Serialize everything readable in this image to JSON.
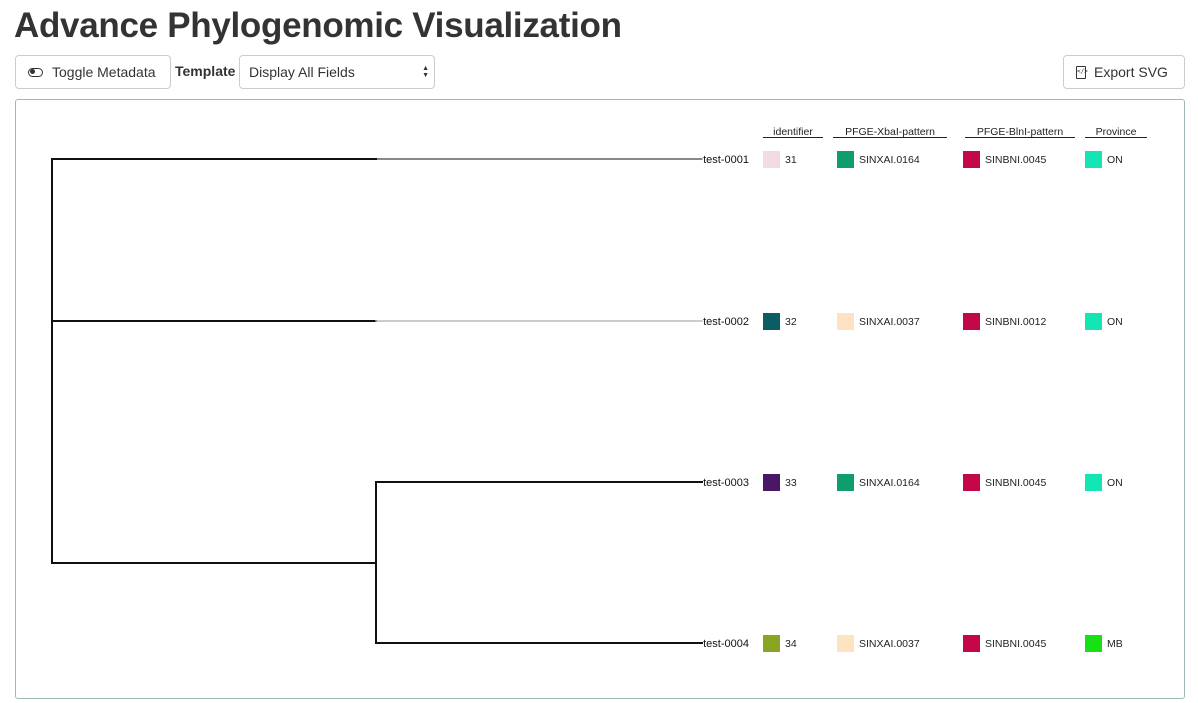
{
  "page": {
    "title": "Advance Phylogenomic Visualization"
  },
  "toolbar": {
    "toggle_label": "Toggle Metadata",
    "toggle_icon": "toggle-icon",
    "template_label": "Template",
    "template_selected": "Display All Fields",
    "export_label": "Export SVG",
    "export_icon": "file-code-icon"
  },
  "metadata": {
    "columns": [
      "identifier",
      "PFGE-XbaI-pattern",
      "PFGE-BlnI-pattern",
      "Province"
    ],
    "rows": [
      {
        "leaf": "test-0001",
        "cells": [
          {
            "text": "31",
            "color": "#f2dbe3"
          },
          {
            "text": "SINXAI.0164",
            "color": "#0f9d70"
          },
          {
            "text": "SINBNI.0045",
            "color": "#c4064a"
          },
          {
            "text": "ON",
            "color": "#14e5b4"
          }
        ]
      },
      {
        "leaf": "test-0002",
        "cells": [
          {
            "text": "32",
            "color": "#0a5d64"
          },
          {
            "text": "SINXAI.0037",
            "color": "#fde3c4"
          },
          {
            "text": "SINBNI.0012",
            "color": "#c4064a"
          },
          {
            "text": "ON",
            "color": "#14e5b4"
          }
        ]
      },
      {
        "leaf": "test-0003",
        "cells": [
          {
            "text": "33",
            "color": "#4a1766"
          },
          {
            "text": "SINXAI.0164",
            "color": "#0f9d70"
          },
          {
            "text": "SINBNI.0045",
            "color": "#c4064a"
          },
          {
            "text": "ON",
            "color": "#14e5b4"
          }
        ]
      },
      {
        "leaf": "test-0004",
        "cells": [
          {
            "text": "34",
            "color": "#8aa522"
          },
          {
            "text": "SINXAI.0037",
            "color": "#fde3c4"
          },
          {
            "text": "SINBNI.0045",
            "color": "#c4064a"
          },
          {
            "text": "MB",
            "color": "#17e014"
          }
        ]
      }
    ]
  }
}
